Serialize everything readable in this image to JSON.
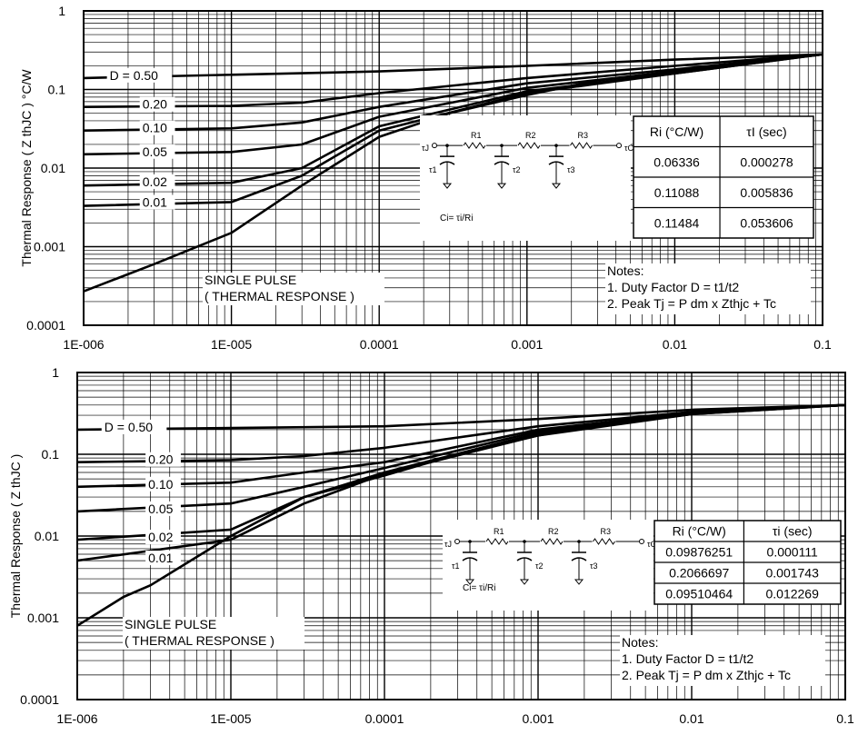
{
  "chart_data": [
    {
      "type": "line",
      "xscale": "log",
      "yscale": "log",
      "xlim": [
        1e-06,
        0.1
      ],
      "ylim": [
        0.0001,
        1
      ],
      "xticklabels": [
        "1E-006",
        "1E-005",
        "0.0001",
        "0.001",
        "0.01",
        "0.1"
      ],
      "yticklabels": [
        "1",
        "0.1",
        "0.01",
        "0.001",
        "0.0001"
      ],
      "ylabel": "Thermal Response ( Z thJC ) °C/W",
      "grid": true,
      "series": [
        {
          "name": "D = 0.50",
          "x": [
            1e-06,
            0.0001,
            0.001,
            0.01,
            0.1
          ],
          "y": [
            0.14,
            0.17,
            0.2,
            0.24,
            0.28
          ]
        },
        {
          "name": "0.20",
          "x": [
            1e-06,
            1e-05,
            3e-05,
            0.0001,
            0.001,
            0.01,
            0.1
          ],
          "y": [
            0.06,
            0.062,
            0.068,
            0.09,
            0.14,
            0.2,
            0.28
          ]
        },
        {
          "name": "0.10",
          "x": [
            1e-06,
            1e-05,
            3e-05,
            0.0001,
            0.001,
            0.01,
            0.1
          ],
          "y": [
            0.03,
            0.032,
            0.038,
            0.06,
            0.12,
            0.18,
            0.28
          ]
        },
        {
          "name": "0.05",
          "x": [
            1e-06,
            1e-05,
            3e-05,
            0.0001,
            0.001,
            0.01,
            0.1
          ],
          "y": [
            0.015,
            0.016,
            0.02,
            0.045,
            0.105,
            0.17,
            0.28
          ]
        },
        {
          "name": "0.02",
          "x": [
            1e-06,
            1e-05,
            3e-05,
            0.0001,
            0.001,
            0.01,
            0.1
          ],
          "y": [
            0.006,
            0.0065,
            0.01,
            0.034,
            0.095,
            0.16,
            0.28
          ]
        },
        {
          "name": "0.01",
          "x": [
            1e-06,
            1e-05,
            3e-05,
            0.0001,
            0.001,
            0.01,
            0.1
          ],
          "y": [
            0.0033,
            0.0037,
            0.008,
            0.03,
            0.09,
            0.16,
            0.28
          ]
        },
        {
          "name": "SINGLE PULSE ( THERMAL RESPONSE )",
          "x": [
            1e-06,
            3e-06,
            1e-05,
            3e-05,
            0.0001,
            0.0003,
            0.001,
            0.003,
            0.01,
            0.1
          ],
          "y": [
            0.00027,
            0.0006,
            0.0015,
            0.006,
            0.025,
            0.05,
            0.085,
            0.13,
            0.17,
            0.28
          ]
        }
      ],
      "rc_table": {
        "headers": [
          "Ri (°C/W)",
          "τI (sec)"
        ],
        "rows": [
          [
            "0.06336",
            "0.000278"
          ],
          [
            "0.11088",
            "0.005836"
          ],
          [
            "0.11484",
            "0.053606"
          ]
        ]
      },
      "circuit": {
        "ci_label": "Ci= τi/Ri",
        "r_labels": [
          "R1",
          "R2",
          "R3"
        ],
        "tau_labels": [
          "τJ",
          "τ1",
          "τ2",
          "τ3",
          "τC"
        ]
      },
      "notes": [
        "Notes:",
        "1. Duty Factor D = t1/t2",
        "2. Peak Tj = P dm x Zthjc + Tc"
      ]
    },
    {
      "type": "line",
      "xscale": "log",
      "yscale": "log",
      "xlim": [
        1e-06,
        0.1
      ],
      "ylim": [
        0.0001,
        1
      ],
      "xticklabels": [
        "1E-006",
        "1E-005",
        "0.0001",
        "0.001",
        "0.01",
        "0.1"
      ],
      "yticklabels": [
        "1",
        "0.1",
        "0.01",
        "0.001",
        "0.0001"
      ],
      "ylabel": "Thermal Response ( Z thJC )",
      "grid": true,
      "series": [
        {
          "name": "D = 0.50",
          "x": [
            1e-06,
            0.0001,
            0.001,
            0.01,
            0.1
          ],
          "y": [
            0.2,
            0.22,
            0.27,
            0.35,
            0.4
          ]
        },
        {
          "name": "0.20",
          "x": [
            1e-06,
            1e-05,
            3e-05,
            0.0001,
            0.001,
            0.01,
            0.1
          ],
          "y": [
            0.08,
            0.085,
            0.095,
            0.12,
            0.22,
            0.33,
            0.4
          ]
        },
        {
          "name": "0.10",
          "x": [
            1e-06,
            1e-05,
            3e-05,
            0.0001,
            0.001,
            0.01,
            0.1
          ],
          "y": [
            0.04,
            0.045,
            0.06,
            0.08,
            0.2,
            0.32,
            0.4
          ]
        },
        {
          "name": "0.05",
          "x": [
            1e-06,
            1e-05,
            3e-05,
            0.0001,
            0.001,
            0.01,
            0.1
          ],
          "y": [
            0.02,
            0.025,
            0.04,
            0.068,
            0.19,
            0.32,
            0.4
          ]
        },
        {
          "name": "0.02",
          "x": [
            1e-06,
            1e-05,
            3e-05,
            0.0001,
            0.001,
            0.01,
            0.1
          ],
          "y": [
            0.009,
            0.012,
            0.03,
            0.06,
            0.18,
            0.31,
            0.4
          ]
        },
        {
          "name": "0.01",
          "x": [
            1e-06,
            1e-05,
            3e-05,
            0.0001,
            0.001,
            0.01,
            0.1
          ],
          "y": [
            0.005,
            0.009,
            0.025,
            0.058,
            0.17,
            0.31,
            0.4
          ]
        },
        {
          "name": "SINGLE PULSE ( THERMAL RESPONSE )",
          "x": [
            1e-06,
            2e-06,
            3e-06,
            1e-05,
            3e-05,
            0.0001,
            0.0003,
            0.001,
            0.003,
            0.01,
            0.1
          ],
          "y": [
            0.0008,
            0.0018,
            0.0025,
            0.01,
            0.03,
            0.055,
            0.1,
            0.17,
            0.25,
            0.32,
            0.4
          ]
        }
      ],
      "rc_table": {
        "headers": [
          "Ri (°C/W)",
          "τi (sec)"
        ],
        "rows": [
          [
            "0.09876251",
            "0.000111"
          ],
          [
            "0.2066697",
            "0.001743"
          ],
          [
            "0.09510464",
            "0.012269"
          ]
        ]
      },
      "circuit": {
        "ci_label": "Ci= τi/Ri",
        "r_labels": [
          "R1",
          "R2",
          "R3"
        ],
        "tau_labels": [
          "τJ",
          "τ1",
          "τ2",
          "τ3",
          "τC"
        ]
      },
      "notes": [
        "Notes:",
        "1. Duty Factor D = t1/t2",
        "2. Peak Tj = P dm x Zthjc + Tc"
      ]
    }
  ]
}
